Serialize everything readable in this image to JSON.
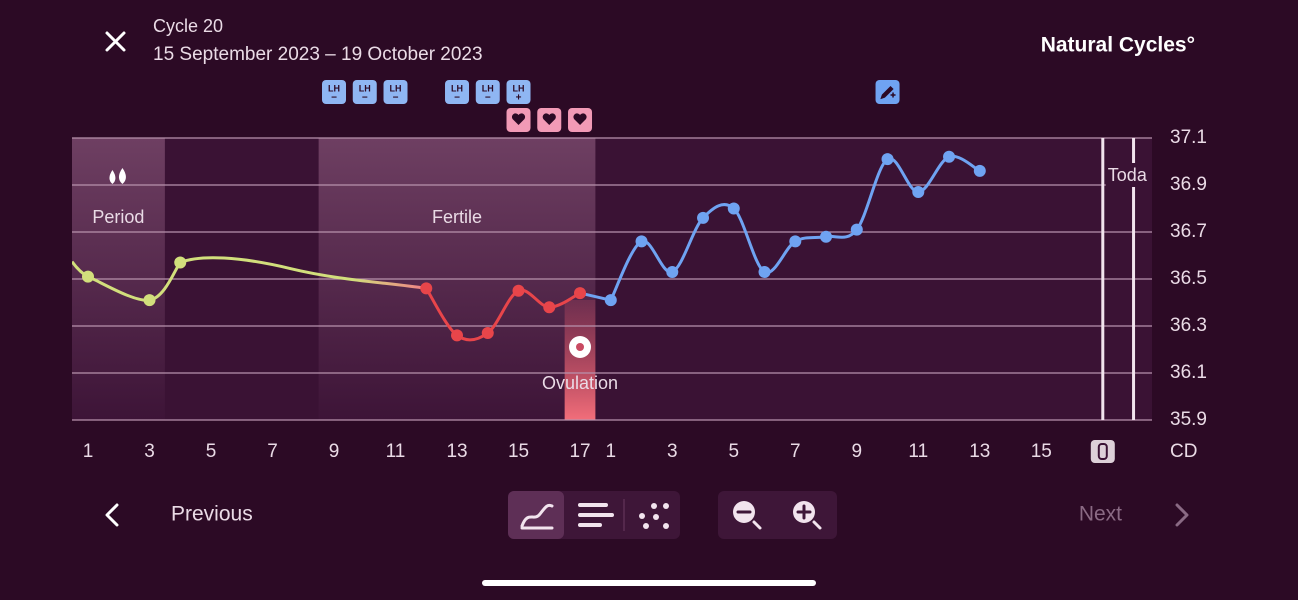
{
  "header": {
    "title": "Cycle 20",
    "subtitle": "15 September 2023 – 19 October 2023",
    "brand": "Natural Cycles°"
  },
  "chart_data": {
    "type": "line",
    "xlim": [
      -0.52,
      34.6
    ],
    "ylim": [
      35.9,
      37.1
    ],
    "yticks": [
      35.9,
      36.1,
      36.3,
      36.5,
      36.7,
      36.9,
      37.1
    ],
    "grid": true,
    "xticks": [
      {
        "value": 0,
        "label": "1"
      },
      {
        "value": 2,
        "label": "3"
      },
      {
        "value": 4,
        "label": "5"
      },
      {
        "value": 6,
        "label": "7"
      },
      {
        "value": 8,
        "label": "9"
      },
      {
        "value": 10,
        "label": "11"
      },
      {
        "value": 12,
        "label": "13"
      },
      {
        "value": 14,
        "label": "15"
      },
      {
        "value": 16,
        "label": "17"
      },
      {
        "value": 17,
        "label": "1"
      },
      {
        "value": 19,
        "label": "3"
      },
      {
        "value": 21,
        "label": "5"
      },
      {
        "value": 23,
        "label": "7"
      },
      {
        "value": 25,
        "label": "9"
      },
      {
        "value": 27,
        "label": "11"
      },
      {
        "value": 29,
        "label": "13"
      },
      {
        "value": 31,
        "label": "15"
      }
    ],
    "xlabel": "CD",
    "series": [
      {
        "color": "#d2df7c",
        "x": [
          0,
          2,
          3
        ],
        "values": [
          36.51,
          36.41,
          36.57
        ]
      },
      {
        "color": "#e8454a",
        "x": [
          11,
          12,
          13,
          14,
          15,
          16
        ],
        "values": [
          36.46,
          36.26,
          36.27,
          36.45,
          36.38,
          36.44
        ]
      },
      {
        "color": "#6fa3f2",
        "x": [
          17,
          18,
          19,
          20,
          21,
          22,
          23,
          24,
          25,
          26,
          27,
          28,
          29
        ],
        "values": [
          36.41,
          36.66,
          36.53,
          36.76,
          36.8,
          36.53,
          36.66,
          36.68,
          36.71,
          37.01,
          36.87,
          37.02,
          36.96
        ]
      }
    ],
    "bands": [
      {
        "label": "Period",
        "from": -0.52,
        "to": 2.5
      },
      {
        "label": "Fertile",
        "from": 7.5,
        "to": 16.5
      }
    ],
    "ovulation": {
      "label": "Ovulation",
      "x": 16
    },
    "today": {
      "label": "Toda",
      "from": 33,
      "to": 34
    },
    "lh_tests": {
      "label": "LH",
      "x": [
        8,
        9,
        10,
        12,
        13,
        14
      ],
      "results": [
        "−",
        "−",
        "−",
        "−",
        "−",
        "+"
      ]
    },
    "intercourse_x": [
      14,
      15,
      16
    ],
    "note_x": [
      26
    ]
  },
  "nav": {
    "previous": "Previous",
    "next": "Next"
  }
}
